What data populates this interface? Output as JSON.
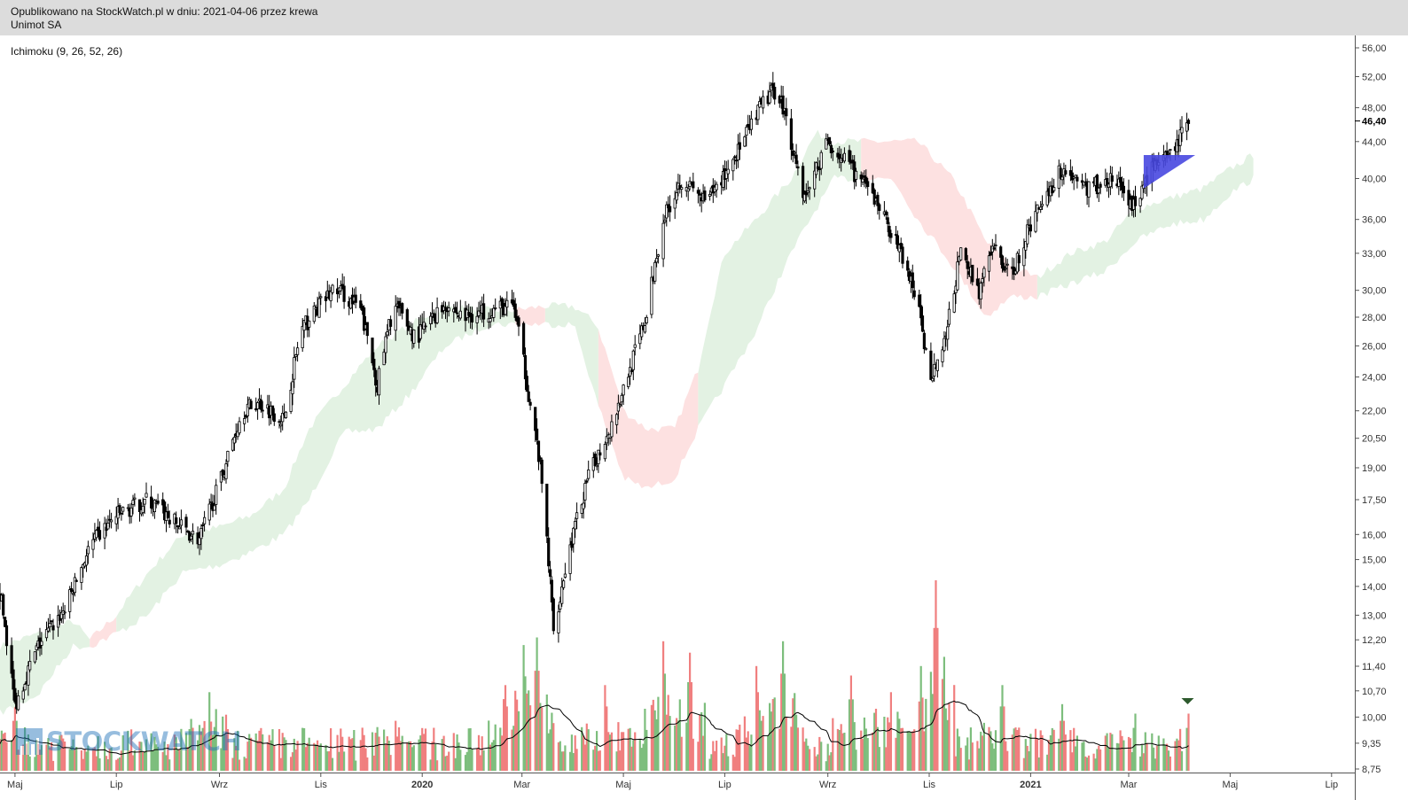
{
  "header": {
    "published": "Opublikowano na StockWatch.pl w dniu: 2021-04-06 przez krewa",
    "instrument": "Unimot SA"
  },
  "indicator": {
    "label": "Ichimoku (9, 26, 52, 26)"
  },
  "watermark": {
    "text": "STOCKWATCH"
  },
  "colors": {
    "up_volume": "#7dbe7d",
    "down_volume": "#f07f7f",
    "cloud_bull": "#e3f2e3",
    "cloud_bear": "#fde1e1",
    "pattern_fill": "#4848e0",
    "candle": "#000000",
    "last_price_marker": "#2d5a2d"
  },
  "chart_data": {
    "type": "line",
    "subtype": "candlestick with ichimoku cloud and volume",
    "scale": "log",
    "ylim": [
      8.75,
      56.0
    ],
    "x_range": [
      "2019-04-22",
      "2021-07-15"
    ],
    "x_axis_labels": [
      {
        "label": "Maj",
        "date": "2019-05-01"
      },
      {
        "label": "Lip",
        "date": "2019-07-01"
      },
      {
        "label": "Wrz",
        "date": "2019-09-01"
      },
      {
        "label": "Lis",
        "date": "2019-11-01"
      },
      {
        "label": "2020",
        "date": "2020-01-01"
      },
      {
        "label": "Mar",
        "date": "2020-03-01"
      },
      {
        "label": "Maj",
        "date": "2020-05-01"
      },
      {
        "label": "Lip",
        "date": "2020-07-01"
      },
      {
        "label": "Wrz",
        "date": "2020-09-01"
      },
      {
        "label": "Lis",
        "date": "2020-11-01"
      },
      {
        "label": "2021",
        "date": "2021-01-01"
      },
      {
        "label": "Mar",
        "date": "2021-03-01"
      },
      {
        "label": "Maj",
        "date": "2021-05-01"
      },
      {
        "label": "Lip",
        "date": "2021-07-01"
      }
    ],
    "y_axis_ticks": [
      {
        "label": "56,00",
        "value": 56.0
      },
      {
        "label": "52,00",
        "value": 52.0
      },
      {
        "label": "48,00",
        "value": 48.0
      },
      {
        "label": "44,00",
        "value": 44.0
      },
      {
        "label": "40,00",
        "value": 40.0
      },
      {
        "label": "36,00",
        "value": 36.0
      },
      {
        "label": "33,00",
        "value": 33.0
      },
      {
        "label": "30,00",
        "value": 30.0
      },
      {
        "label": "28,00",
        "value": 28.0
      },
      {
        "label": "26,00",
        "value": 26.0
      },
      {
        "label": "24,00",
        "value": 24.0
      },
      {
        "label": "22,00",
        "value": 22.0
      },
      {
        "label": "20,50",
        "value": 20.5
      },
      {
        "label": "19,00",
        "value": 19.0
      },
      {
        "label": "17,50",
        "value": 17.5
      },
      {
        "label": "16,00",
        "value": 16.0
      },
      {
        "label": "15,00",
        "value": 15.0
      },
      {
        "label": "14,00",
        "value": 14.0
      },
      {
        "label": "13,00",
        "value": 13.0
      },
      {
        "label": "12,20",
        "value": 12.2
      },
      {
        "label": "11,40",
        "value": 11.4
      },
      {
        "label": "10,70",
        "value": 10.7
      },
      {
        "label": "10,00",
        "value": 10.0
      },
      {
        "label": "9,35",
        "value": 9.35
      },
      {
        "label": "8,75",
        "value": 8.75
      }
    ],
    "last_price": {
      "label": "46,40",
      "value": 46.4
    },
    "price_close": [
      [
        "2019-04-22",
        13.8
      ],
      [
        "2019-05-01",
        10.3
      ],
      [
        "2019-05-15",
        12.0
      ],
      [
        "2019-06-01",
        13.3
      ],
      [
        "2019-06-15",
        15.5
      ],
      [
        "2019-07-01",
        16.8
      ],
      [
        "2019-07-20",
        17.5
      ],
      [
        "2019-08-05",
        16.5
      ],
      [
        "2019-08-20",
        15.8
      ],
      [
        "2019-09-01",
        18.2
      ],
      [
        "2019-09-15",
        22.0
      ],
      [
        "2019-09-25",
        22.5
      ],
      [
        "2019-10-10",
        21.5
      ],
      [
        "2019-10-20",
        27.0
      ],
      [
        "2019-11-01",
        29.0
      ],
      [
        "2019-11-10",
        30.2
      ],
      [
        "2019-11-25",
        28.5
      ],
      [
        "2019-12-05",
        23.5
      ],
      [
        "2019-12-15",
        29.0
      ],
      [
        "2019-12-28",
        26.5
      ],
      [
        "2020-01-15",
        29.0
      ],
      [
        "2020-01-25",
        28.0
      ],
      [
        "2020-02-10",
        28.5
      ],
      [
        "2020-02-25",
        28.8
      ],
      [
        "2020-03-05",
        23.0
      ],
      [
        "2020-03-12",
        19.0
      ],
      [
        "2020-03-20",
        12.5
      ],
      [
        "2020-03-30",
        15.5
      ],
      [
        "2020-04-10",
        18.5
      ],
      [
        "2020-04-25",
        21.5
      ],
      [
        "2020-05-05",
        24.5
      ],
      [
        "2020-05-15",
        28.0
      ],
      [
        "2020-05-25",
        36.0
      ],
      [
        "2020-06-05",
        40.0
      ],
      [
        "2020-06-20",
        37.5
      ],
      [
        "2020-07-01",
        40.5
      ],
      [
        "2020-07-15",
        45.0
      ],
      [
        "2020-07-25",
        49.0
      ],
      [
        "2020-08-02",
        50.5
      ],
      [
        "2020-08-10",
        44.0
      ],
      [
        "2020-08-18",
        38.0
      ],
      [
        "2020-09-01",
        44.0
      ],
      [
        "2020-09-15",
        41.0
      ],
      [
        "2020-10-01",
        37.5
      ],
      [
        "2020-10-15",
        33.0
      ],
      [
        "2020-10-25",
        29.0
      ],
      [
        "2020-11-01",
        24.0
      ],
      [
        "2020-11-10",
        26.0
      ],
      [
        "2020-11-20",
        33.0
      ],
      [
        "2020-12-01",
        30.0
      ],
      [
        "2020-12-10",
        33.5
      ],
      [
        "2020-12-20",
        31.0
      ],
      [
        "2021-01-05",
        37.0
      ],
      [
        "2021-01-20",
        41.0
      ],
      [
        "2021-02-05",
        39.0
      ],
      [
        "2021-02-20",
        40.0
      ],
      [
        "2021-03-05",
        37.0
      ],
      [
        "2021-03-15",
        41.5
      ],
      [
        "2021-03-25",
        42.0
      ],
      [
        "2021-04-06",
        46.4
      ]
    ],
    "ichimoku_cloud": [
      [
        "2019-04-22",
        10.1,
        12.0,
        "bull"
      ],
      [
        "2019-05-15",
        10.6,
        12.4,
        "bull"
      ],
      [
        "2019-06-05",
        12.0,
        12.8,
        "bull"
      ],
      [
        "2019-06-15",
        12.0,
        12.2,
        "bear"
      ],
      [
        "2019-07-01",
        12.4,
        13.0,
        "bull"
      ],
      [
        "2019-07-20",
        13.0,
        14.5,
        "bull"
      ],
      [
        "2019-08-10",
        14.5,
        16.0,
        "bull"
      ],
      [
        "2019-09-01",
        14.8,
        16.3,
        "bull"
      ],
      [
        "2019-09-20",
        15.3,
        16.8,
        "bull"
      ],
      [
        "2019-10-10",
        16.0,
        18.0,
        "bull"
      ],
      [
        "2019-10-25",
        17.5,
        21.0,
        "bull"
      ],
      [
        "2019-11-15",
        20.8,
        23.5,
        "bull"
      ],
      [
        "2019-12-05",
        21.0,
        26.0,
        "bull"
      ],
      [
        "2019-12-25",
        23.0,
        27.5,
        "bull"
      ],
      [
        "2020-01-15",
        26.0,
        28.8,
        "bull"
      ],
      [
        "2020-02-10",
        27.5,
        28.5,
        "bull"
      ],
      [
        "2020-02-25",
        27.5,
        28.5,
        "bear"
      ],
      [
        "2020-03-15",
        27.5,
        28.8,
        "bull"
      ],
      [
        "2020-04-01",
        27.5,
        28.8,
        "bull"
      ],
      [
        "2020-04-15",
        22.5,
        27.5,
        "bear"
      ],
      [
        "2020-05-01",
        18.5,
        22.0,
        "bear"
      ],
      [
        "2020-05-15",
        18.0,
        21.0,
        "bear"
      ],
      [
        "2020-06-01",
        18.5,
        21.0,
        "bear"
      ],
      [
        "2020-06-15",
        21.0,
        24.5,
        "bull"
      ],
      [
        "2020-07-01",
        23.5,
        33.0,
        "bull"
      ],
      [
        "2020-07-20",
        27.0,
        36.0,
        "bull"
      ],
      [
        "2020-08-10",
        33.0,
        40.0,
        "bull"
      ],
      [
        "2020-08-25",
        37.0,
        45.0,
        "bull"
      ],
      [
        "2020-09-05",
        40.0,
        44.0,
        "bull"
      ],
      [
        "2020-09-20",
        40.0,
        44.0,
        "bear"
      ],
      [
        "2020-10-10",
        40.0,
        44.0,
        "bear"
      ],
      [
        "2020-10-25",
        36.0,
        44.0,
        "bear"
      ],
      [
        "2020-11-15",
        32.0,
        40.0,
        "bear"
      ],
      [
        "2020-12-05",
        28.0,
        34.0,
        "bear"
      ],
      [
        "2020-12-20",
        29.5,
        32.0,
        "bear"
      ],
      [
        "2021-01-05",
        29.5,
        31.0,
        "bull"
      ],
      [
        "2021-01-25",
        30.5,
        33.0,
        "bull"
      ],
      [
        "2021-02-15",
        31.5,
        34.0,
        "bull"
      ],
      [
        "2021-03-05",
        34.0,
        37.0,
        "bull"
      ],
      [
        "2021-03-25",
        35.5,
        38.0,
        "bull"
      ],
      [
        "2021-04-15",
        36.0,
        39.0,
        "bull"
      ],
      [
        "2021-05-01",
        38.5,
        41.0,
        "bull"
      ],
      [
        "2021-05-15",
        40.0,
        42.5,
        "bull"
      ]
    ],
    "pattern": {
      "type": "triangle",
      "points": [
        [
          "2021-03-10",
          42.5
        ],
        [
          "2021-03-10",
          39.0
        ],
        [
          "2021-04-10",
          42.5
        ]
      ]
    },
    "volume_peaks": [
      [
        "2019-05-01",
        0.35
      ],
      [
        "2019-07-20",
        0.22
      ],
      [
        "2019-08-25",
        0.55
      ],
      [
        "2019-10-20",
        0.3
      ],
      [
        "2019-12-15",
        0.35
      ],
      [
        "2020-02-20",
        0.45
      ],
      [
        "2020-03-01",
        0.88
      ],
      [
        "2020-03-10",
        0.7
      ],
      [
        "2020-04-20",
        0.45
      ],
      [
        "2020-05-25",
        0.68
      ],
      [
        "2020-06-10",
        0.62
      ],
      [
        "2020-07-20",
        0.55
      ],
      [
        "2020-08-05",
        0.68
      ],
      [
        "2020-09-15",
        0.5
      ],
      [
        "2020-10-10",
        0.55
      ],
      [
        "2020-11-05",
        1.0
      ],
      [
        "2020-12-15",
        0.45
      ],
      [
        "2021-01-20",
        0.35
      ],
      [
        "2021-03-05",
        0.3
      ],
      [
        "2021-04-06",
        0.3
      ]
    ],
    "volume_ylim": [
      0,
      1.0
    ]
  }
}
